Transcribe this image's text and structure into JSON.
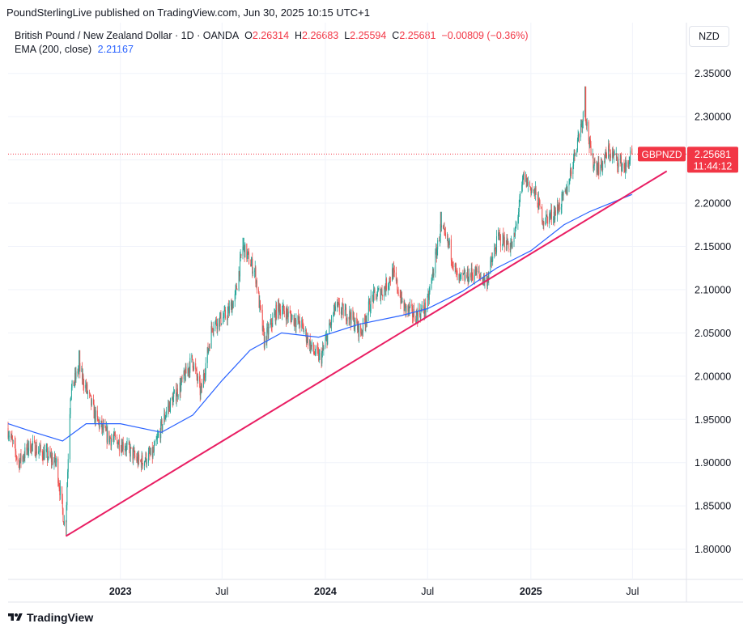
{
  "attribution": "PoundSterlingLive published on TradingView.com, Jun 30, 2025 10:15 UTC+1",
  "legend": {
    "symbol": "British Pound / New Zealand Dollar · 1D · OANDA",
    "o_label": "O",
    "o_value": "2.26314",
    "h_label": "H",
    "h_value": "2.26683",
    "l_label": "L",
    "l_value": "2.25594",
    "c_label": "C",
    "c_value": "2.25681",
    "change": "−0.00809 (−0.36%)",
    "ema_label": "EMA (200, close)",
    "ema_value": "2.21167"
  },
  "currency_button": "NZD",
  "price_tag": {
    "symbol": "GBPNZD",
    "price": "2.25681",
    "countdown": "11:44:12"
  },
  "footer": {
    "brand": "TradingView"
  },
  "colors": {
    "up": "#26a69a",
    "down": "#ef5350",
    "ema": "#2962ff",
    "trendline": "#e91e63",
    "tag": "#f23645"
  },
  "chart_data": {
    "type": "candlestick",
    "symbol": "GBPNZD",
    "timeframe": "1D",
    "yaxis": {
      "ticks": [
        1.8,
        1.85,
        1.9,
        1.95,
        2.0,
        2.05,
        2.1,
        2.15,
        2.2,
        2.25,
        2.3,
        2.35
      ],
      "range": [
        1.765,
        2.375
      ]
    },
    "xaxis": {
      "range": [
        "2022-06-15",
        "2025-10-05"
      ],
      "ticks": [
        {
          "label": "2023",
          "date": "2023-01-01",
          "bold": true
        },
        {
          "label": "Jul",
          "date": "2023-07-01",
          "bold": false
        },
        {
          "label": "2024",
          "date": "2024-01-01",
          "bold": true
        },
        {
          "label": "Jul",
          "date": "2024-07-01",
          "bold": false
        },
        {
          "label": "2025",
          "date": "2025-01-01",
          "bold": true
        },
        {
          "label": "Jul",
          "date": "2025-07-01",
          "bold": false
        }
      ]
    },
    "price_path": [
      [
        "2022-06-15",
        1.94
      ],
      [
        "2022-07-05",
        1.9
      ],
      [
        "2022-07-25",
        1.92
      ],
      [
        "2022-08-20",
        1.91
      ],
      [
        "2022-09-10",
        1.9
      ],
      [
        "2022-09-26",
        1.82
      ],
      [
        "2022-10-05",
        1.98
      ],
      [
        "2022-10-20",
        2.01
      ],
      [
        "2022-11-05",
        1.98
      ],
      [
        "2022-11-20",
        1.95
      ],
      [
        "2022-12-10",
        1.93
      ],
      [
        "2023-01-10",
        1.92
      ],
      [
        "2023-02-05",
        1.9
      ],
      [
        "2023-03-01",
        1.91
      ],
      [
        "2023-03-25",
        1.96
      ],
      [
        "2023-04-20",
        1.99
      ],
      [
        "2023-05-10",
        2.02
      ],
      [
        "2023-05-25",
        1.98
      ],
      [
        "2023-06-15",
        2.06
      ],
      [
        "2023-07-10",
        2.07
      ],
      [
        "2023-07-25",
        2.09
      ],
      [
        "2023-08-08",
        2.15
      ],
      [
        "2023-08-30",
        2.12
      ],
      [
        "2023-09-15",
        2.04
      ],
      [
        "2023-10-10",
        2.08
      ],
      [
        "2023-10-30",
        2.07
      ],
      [
        "2023-11-20",
        2.06
      ],
      [
        "2023-12-10",
        2.03
      ],
      [
        "2023-12-25",
        2.02
      ],
      [
        "2024-01-20",
        2.08
      ],
      [
        "2024-02-15",
        2.07
      ],
      [
        "2024-03-05",
        2.05
      ],
      [
        "2024-03-25",
        2.09
      ],
      [
        "2024-04-15",
        2.1
      ],
      [
        "2024-05-01",
        2.12
      ],
      [
        "2024-05-20",
        2.08
      ],
      [
        "2024-06-10",
        2.07
      ],
      [
        "2024-07-01",
        2.08
      ],
      [
        "2024-07-25",
        2.17
      ],
      [
        "2024-08-10",
        2.15
      ],
      [
        "2024-08-25",
        2.11
      ],
      [
        "2024-09-25",
        2.12
      ],
      [
        "2024-10-15",
        2.11
      ],
      [
        "2024-11-05",
        2.16
      ],
      [
        "2024-12-01",
        2.15
      ],
      [
        "2024-12-20",
        2.23
      ],
      [
        "2025-01-10",
        2.21
      ],
      [
        "2025-01-25",
        2.18
      ],
      [
        "2025-02-15",
        2.19
      ],
      [
        "2025-03-05",
        2.21
      ],
      [
        "2025-03-25",
        2.27
      ],
      [
        "2025-04-08",
        2.31
      ],
      [
        "2025-04-20",
        2.25
      ],
      [
        "2025-05-05",
        2.24
      ],
      [
        "2025-05-20",
        2.26
      ],
      [
        "2025-06-05",
        2.25
      ],
      [
        "2025-06-20",
        2.24
      ],
      [
        "2025-06-30",
        2.257
      ]
    ],
    "extremes": [
      {
        "date": "2022-09-26",
        "low": 1.815
      },
      {
        "date": "2022-10-20",
        "high": 2.03
      },
      {
        "date": "2023-08-08",
        "high": 2.16
      },
      {
        "date": "2024-07-25",
        "high": 2.19
      },
      {
        "date": "2025-04-08",
        "high": 2.335
      }
    ],
    "last": {
      "open": 2.26314,
      "high": 2.26683,
      "low": 2.25594,
      "close": 2.25681
    },
    "ema": {
      "name": "EMA (200, close)",
      "last_value": 2.21167,
      "points": [
        [
          "2022-06-15",
          1.945
        ],
        [
          "2022-08-01",
          1.935
        ],
        [
          "2022-09-20",
          1.925
        ],
        [
          "2022-11-01",
          1.945
        ],
        [
          "2023-01-01",
          1.945
        ],
        [
          "2023-03-15",
          1.935
        ],
        [
          "2023-05-10",
          1.955
        ],
        [
          "2023-07-01",
          1.995
        ],
        [
          "2023-08-20",
          2.03
        ],
        [
          "2023-10-15",
          2.05
        ],
        [
          "2023-12-20",
          2.045
        ],
        [
          "2024-03-01",
          2.06
        ],
        [
          "2024-05-15",
          2.07
        ],
        [
          "2024-07-01",
          2.078
        ],
        [
          "2024-09-01",
          2.098
        ],
        [
          "2024-11-01",
          2.125
        ],
        [
          "2025-01-01",
          2.145
        ],
        [
          "2025-03-01",
          2.175
        ],
        [
          "2025-04-15",
          2.19
        ],
        [
          "2025-06-30",
          2.21
        ]
      ]
    },
    "trendline": {
      "from": [
        "2022-09-26",
        1.815
      ],
      "to": [
        "2025-08-31",
        2.237
      ]
    },
    "last_price_line": 2.25681
  }
}
